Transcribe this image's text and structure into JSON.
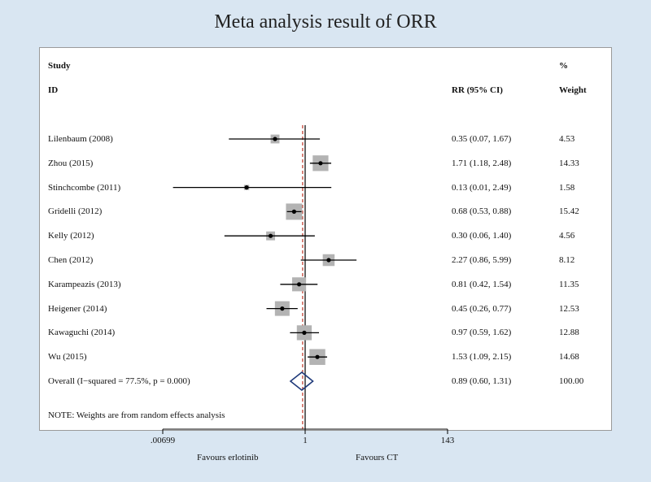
{
  "chart_data": {
    "type": "forest",
    "title": "Meta analysis result of ORR",
    "headers": {
      "study_line1": "Study",
      "study_line2": "ID",
      "effect": "RR (95% CI)",
      "weight_line1": "%",
      "weight_line2": "Weight"
    },
    "studies": [
      {
        "id": "Lilenbaum (2008)",
        "rr": 0.35,
        "lo": 0.07,
        "hi": 1.67,
        "ci_text": "0.35 (0.07, 1.67)",
        "weight": 4.53,
        "weight_text": "4.53"
      },
      {
        "id": "Zhou (2015)",
        "rr": 1.71,
        "lo": 1.18,
        "hi": 2.48,
        "ci_text": "1.71 (1.18, 2.48)",
        "weight": 14.33,
        "weight_text": "14.33"
      },
      {
        "id": "Stinchcombe (2011)",
        "rr": 0.13,
        "lo": 0.01,
        "hi": 2.49,
        "ci_text": "0.13 (0.01, 2.49)",
        "weight": 1.58,
        "weight_text": "1.58"
      },
      {
        "id": "Gridelli (2012)",
        "rr": 0.68,
        "lo": 0.53,
        "hi": 0.88,
        "ci_text": "0.68 (0.53, 0.88)",
        "weight": 15.42,
        "weight_text": "15.42"
      },
      {
        "id": "Kelly (2012)",
        "rr": 0.3,
        "lo": 0.06,
        "hi": 1.4,
        "ci_text": "0.30 (0.06, 1.40)",
        "weight": 4.56,
        "weight_text": "4.56"
      },
      {
        "id": "Chen (2012)",
        "rr": 2.27,
        "lo": 0.86,
        "hi": 5.99,
        "ci_text": "2.27 (0.86, 5.99)",
        "weight": 8.12,
        "weight_text": "8.12"
      },
      {
        "id": "Karampeazis (2013)",
        "rr": 0.81,
        "lo": 0.42,
        "hi": 1.54,
        "ci_text": "0.81 (0.42, 1.54)",
        "weight": 11.35,
        "weight_text": "11.35"
      },
      {
        "id": "Heigener (2014)",
        "rr": 0.45,
        "lo": 0.26,
        "hi": 0.77,
        "ci_text": "0.45 (0.26, 0.77)",
        "weight": 12.53,
        "weight_text": "12.53"
      },
      {
        "id": "Kawaguchi (2014)",
        "rr": 0.97,
        "lo": 0.59,
        "hi": 1.62,
        "ci_text": "0.97 (0.59, 1.62)",
        "weight": 12.88,
        "weight_text": "12.88"
      },
      {
        "id": "Wu (2015)",
        "rr": 1.53,
        "lo": 1.09,
        "hi": 2.15,
        "ci_text": "1.53 (1.09, 2.15)",
        "weight": 14.68,
        "weight_text": "14.68"
      }
    ],
    "overall": {
      "label": "Overall  (I−squared = 77.5%, p = 0.000)",
      "rr": 0.89,
      "lo": 0.6,
      "hi": 1.31,
      "ci_text": "0.89 (0.60, 1.31)",
      "weight_text": "100.00"
    },
    "note": "NOTE: Weights are from random effects analysis",
    "x_axis": {
      "scale": "log",
      "ticks": [
        0.00699,
        1,
        143
      ],
      "tick_labels": [
        ".00699",
        "1",
        "143"
      ],
      "reference_line": 1
    },
    "favours_left": "Favours erlotinib",
    "favours_right": "Favours CT"
  },
  "colors": {
    "background": "#d9e6f2",
    "box": "#b3b3b3",
    "line": "#000000",
    "overall_line": "#c0392b",
    "diamond": "#1f3a7a"
  }
}
